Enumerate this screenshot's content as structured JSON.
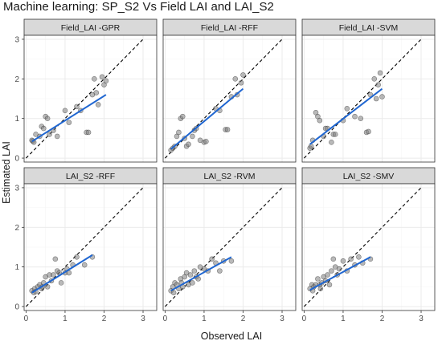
{
  "figure": {
    "title": "Machine learning: SP_S2 Vs Field LAI and LAI_S2",
    "xlabel": "Observed LAI",
    "ylabel": "Estimated LAI"
  },
  "colors": {
    "point_fill": "#7f7f7f",
    "point_stroke": "#333333",
    "fit_line": "#1f66d1",
    "identity_line": "#000000",
    "strip_bg": "#d9d9d9",
    "grid_major": "#ebebeb",
    "grid_minor": "#f5f5f5",
    "panel_border": "#333333"
  },
  "chart_data": {
    "type": "scatter",
    "layout": "facet 2x3",
    "xlim": [
      -0.05,
      3.35
    ],
    "ylim": [
      -0.1,
      3.1
    ],
    "x_ticks": [
      0,
      1,
      2,
      3
    ],
    "y_ticks": [
      0,
      1,
      2,
      3
    ],
    "reference_line": "y = x (dashed)",
    "grid": true,
    "panels": [
      {
        "label": "Field_LAI -GPR",
        "points": [
          [
            0.15,
            0.45
          ],
          [
            0.17,
            0.43
          ],
          [
            0.2,
            0.4
          ],
          [
            0.25,
            0.6
          ],
          [
            0.35,
            0.55
          ],
          [
            0.4,
            0.8
          ],
          [
            0.45,
            0.75
          ],
          [
            0.5,
            1.05
          ],
          [
            0.55,
            1.0
          ],
          [
            0.6,
            0.6
          ],
          [
            0.7,
            0.7
          ],
          [
            0.8,
            0.55
          ],
          [
            1.0,
            1.2
          ],
          [
            1.1,
            0.9
          ],
          [
            1.3,
            1.3
          ],
          [
            1.4,
            1.2
          ],
          [
            1.55,
            0.65
          ],
          [
            1.6,
            0.65
          ],
          [
            1.7,
            1.6
          ],
          [
            1.75,
            2.0
          ],
          [
            1.8,
            1.65
          ],
          [
            1.85,
            1.35
          ],
          [
            1.95,
            2.05
          ],
          [
            2.0,
            1.85
          ],
          [
            2.05,
            1.95
          ]
        ],
        "fit": [
          [
            0.15,
            0.42
          ],
          [
            2.05,
            1.6
          ]
        ]
      },
      {
        "label": "Field_LAI -RFF",
        "points": [
          [
            0.15,
            0.2
          ],
          [
            0.2,
            0.25
          ],
          [
            0.25,
            0.3
          ],
          [
            0.3,
            0.55
          ],
          [
            0.35,
            0.65
          ],
          [
            0.4,
            1.0
          ],
          [
            0.45,
            1.05
          ],
          [
            0.5,
            0.5
          ],
          [
            0.55,
            0.3
          ],
          [
            0.6,
            0.35
          ],
          [
            0.7,
            0.55
          ],
          [
            0.75,
            0.7
          ],
          [
            0.8,
            0.75
          ],
          [
            0.9,
            0.45
          ],
          [
            1.0,
            0.4
          ],
          [
            1.05,
            0.42
          ],
          [
            1.3,
            1.25
          ],
          [
            1.4,
            1.2
          ],
          [
            1.55,
            0.72
          ],
          [
            1.6,
            0.72
          ],
          [
            1.7,
            1.55
          ],
          [
            1.8,
            2.0
          ],
          [
            1.85,
            1.6
          ],
          [
            1.95,
            1.9
          ],
          [
            2.0,
            2.1
          ]
        ],
        "fit": [
          [
            0.15,
            0.23
          ],
          [
            2.0,
            1.75
          ]
        ]
      },
      {
        "label": "Field_LAI -SVM",
        "points": [
          [
            0.15,
            0.25
          ],
          [
            0.18,
            0.3
          ],
          [
            0.22,
            0.45
          ],
          [
            0.3,
            1.15
          ],
          [
            0.35,
            1.05
          ],
          [
            0.4,
            0.95
          ],
          [
            0.5,
            0.55
          ],
          [
            0.55,
            0.75
          ],
          [
            0.6,
            0.75
          ],
          [
            0.7,
            0.4
          ],
          [
            0.75,
            0.6
          ],
          [
            0.8,
            0.6
          ],
          [
            1.0,
            0.95
          ],
          [
            1.1,
            1.25
          ],
          [
            1.3,
            1.05
          ],
          [
            1.45,
            1.0
          ],
          [
            1.6,
            0.65
          ],
          [
            1.65,
            0.67
          ],
          [
            1.7,
            1.6
          ],
          [
            1.8,
            2.0
          ],
          [
            1.85,
            1.5
          ],
          [
            1.9,
            1.85
          ],
          [
            1.95,
            2.15
          ],
          [
            2.0,
            1.55
          ]
        ],
        "fit": [
          [
            0.15,
            0.35
          ],
          [
            2.0,
            1.75
          ]
        ]
      },
      {
        "label": "LAI_S2 -RFF",
        "points": [
          [
            0.15,
            0.4
          ],
          [
            0.2,
            0.35
          ],
          [
            0.22,
            0.45
          ],
          [
            0.25,
            0.38
          ],
          [
            0.3,
            0.5
          ],
          [
            0.35,
            0.55
          ],
          [
            0.4,
            0.45
          ],
          [
            0.42,
            0.5
          ],
          [
            0.45,
            0.6
          ],
          [
            0.5,
            0.75
          ],
          [
            0.55,
            0.5
          ],
          [
            0.6,
            0.8
          ],
          [
            0.65,
            0.65
          ],
          [
            0.7,
            0.8
          ],
          [
            0.75,
            1.2
          ],
          [
            0.8,
            0.9
          ],
          [
            0.85,
            0.85
          ],
          [
            0.9,
            0.6
          ],
          [
            1.0,
            0.85
          ],
          [
            1.05,
            0.95
          ],
          [
            1.1,
            0.85
          ],
          [
            1.2,
            1.05
          ],
          [
            1.3,
            1.25
          ],
          [
            1.5,
            1.05
          ],
          [
            1.7,
            1.25
          ]
        ],
        "fit": [
          [
            0.15,
            0.35
          ],
          [
            1.7,
            1.3
          ]
        ]
      },
      {
        "label": "LAI_S2 -RVM",
        "points": [
          [
            0.15,
            0.4
          ],
          [
            0.2,
            0.5
          ],
          [
            0.22,
            0.35
          ],
          [
            0.25,
            0.6
          ],
          [
            0.3,
            0.55
          ],
          [
            0.35,
            0.45
          ],
          [
            0.4,
            0.7
          ],
          [
            0.42,
            0.6
          ],
          [
            0.45,
            0.5
          ],
          [
            0.5,
            0.75
          ],
          [
            0.55,
            0.85
          ],
          [
            0.6,
            0.55
          ],
          [
            0.65,
            0.8
          ],
          [
            0.7,
            0.6
          ],
          [
            0.75,
            0.9
          ],
          [
            0.8,
            0.75
          ],
          [
            0.85,
            0.7
          ],
          [
            0.9,
            1.0
          ],
          [
            1.0,
            0.95
          ],
          [
            1.1,
            0.9
          ],
          [
            1.2,
            1.2
          ],
          [
            1.3,
            1.1
          ],
          [
            1.4,
            0.9
          ],
          [
            1.5,
            1.15
          ],
          [
            1.7,
            1.15
          ]
        ],
        "fit": [
          [
            0.15,
            0.4
          ],
          [
            1.7,
            1.25
          ]
        ]
      },
      {
        "label": "LAI_S2 -SMV",
        "points": [
          [
            0.15,
            0.45
          ],
          [
            0.2,
            0.55
          ],
          [
            0.22,
            0.4
          ],
          [
            0.25,
            0.5
          ],
          [
            0.3,
            0.55
          ],
          [
            0.35,
            0.7
          ],
          [
            0.4,
            0.55
          ],
          [
            0.42,
            0.45
          ],
          [
            0.45,
            0.6
          ],
          [
            0.5,
            0.75
          ],
          [
            0.55,
            0.65
          ],
          [
            0.6,
            0.8
          ],
          [
            0.65,
            0.55
          ],
          [
            0.7,
            0.9
          ],
          [
            0.75,
            1.2
          ],
          [
            0.8,
            1.0
          ],
          [
            0.85,
            0.8
          ],
          [
            0.9,
            0.95
          ],
          [
            1.0,
            1.15
          ],
          [
            1.1,
            0.9
          ],
          [
            1.2,
            1.2
          ],
          [
            1.3,
            1.05
          ],
          [
            1.4,
            1.25
          ],
          [
            1.5,
            1.1
          ],
          [
            1.7,
            1.2
          ]
        ],
        "fit": [
          [
            0.15,
            0.42
          ],
          [
            1.7,
            1.25
          ]
        ]
      }
    ]
  }
}
